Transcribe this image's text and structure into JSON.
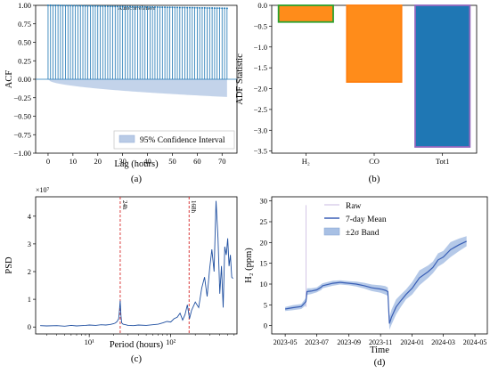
{
  "chart_data": [
    {
      "panel": "a",
      "type": "bar",
      "subtype": "autocorrelation-stem",
      "title": "Autocorrelation",
      "xlabel": "Lag (hours)",
      "ylabel": "ACF",
      "caption": "(a)",
      "xlim": [
        -5,
        76
      ],
      "ylim": [
        -1.0,
        1.0
      ],
      "x_ticks": [
        "0",
        "10",
        "20",
        "30",
        "40",
        "50",
        "60",
        "70"
      ],
      "y_ticks": [
        "−1.00",
        "−0.75",
        "−0.50",
        "−0.25",
        "0.00",
        "0.25",
        "0.50",
        "0.75",
        "1.00"
      ],
      "lag_start": 0,
      "lag_end": 72,
      "acf_at_lag0": 1.0,
      "acf_at_lag72": 0.96,
      "confidence_upper_at_lag72": 0.0,
      "confidence_lower_at_lag72": -0.24,
      "legend": [
        {
          "label": "95% Confidence Interval"
        }
      ],
      "legend_position": "bottom-right",
      "colors": {
        "stem": "#1f77b4",
        "band": "#b9cbe6"
      }
    },
    {
      "panel": "b",
      "type": "bar",
      "ylabel": "ADF Statistic",
      "caption": "(b)",
      "categories": [
        "H₂",
        "CO",
        "Tot1"
      ],
      "values": [
        -0.4,
        -1.84,
        -3.4
      ],
      "ylim": [
        -3.55,
        0.0
      ],
      "y_ticks": [
        "0.0",
        "−0.5",
        "−1.0",
        "−1.5",
        "−2.0",
        "−2.5",
        "−3.0",
        "−3.5"
      ],
      "colors": [
        "#ff8c1a",
        "#ff8c1a",
        "#1f77b4"
      ],
      "bar_edge_colors": [
        "#2ca02c",
        "#ff7f0e",
        "#9467bd"
      ]
    },
    {
      "panel": "c",
      "type": "line",
      "subtype": "periodogram",
      "xlabel": "Period (hours)",
      "ylabel": "PSD",
      "caption": "(c)",
      "x_scale": "log",
      "y_multiplier": "×10⁷",
      "x_ticks": [
        "10¹",
        "10²"
      ],
      "y_ticks": [
        "0",
        "1",
        "2",
        "3",
        "4"
      ],
      "xlim": [
        2.2,
        650
      ],
      "ylim": [
        -0.25,
        4.7
      ],
      "reference_lines": [
        {
          "period": 24,
          "label": "24h",
          "color": "#d62728"
        },
        {
          "period": 168,
          "label": "168h",
          "color": "#d62728"
        }
      ],
      "series": [
        {
          "x": [
            2.5,
            3,
            4,
            5,
            6,
            7,
            8,
            9,
            10,
            12,
            14,
            16,
            18,
            20,
            21,
            22,
            23,
            23.5,
            24,
            24.5,
            25,
            26,
            28,
            30,
            35,
            40,
            50,
            60,
            70,
            80,
            90,
            100,
            110,
            120,
            130,
            140,
            150,
            160,
            170,
            180,
            200,
            220,
            240,
            260,
            280,
            300,
            320,
            340,
            350,
            360,
            380,
            400,
            420,
            440,
            460,
            480,
            500,
            520,
            540,
            560,
            580
          ],
          "y": [
            0.05,
            0.04,
            0.05,
            0.03,
            0.06,
            0.04,
            0.05,
            0.06,
            0.07,
            0.06,
            0.08,
            0.07,
            0.09,
            0.12,
            0.15,
            0.2,
            0.3,
            0.6,
            0.95,
            0.4,
            0.15,
            0.1,
            0.08,
            0.06,
            0.05,
            0.07,
            0.06,
            0.08,
            0.1,
            0.15,
            0.2,
            0.18,
            0.3,
            0.35,
            0.5,
            0.25,
            0.45,
            0.8,
            0.3,
            0.6,
            0.9,
            0.7,
            1.4,
            1.8,
            1.1,
            2.1,
            2.8,
            2.0,
            3.3,
            4.55,
            3.2,
            1.2,
            2.2,
            0.7,
            2.9,
            2.6,
            3.2,
            2.2,
            2.6,
            1.8,
            1.75
          ]
        }
      ],
      "line_color": "#1f4fa0"
    },
    {
      "panel": "d",
      "type": "line",
      "xlabel": "Time",
      "ylabel": "H₂ (ppm)",
      "caption": "(d)",
      "ylim": [
        -2,
        31
      ],
      "y_ticks": [
        "0",
        "5",
        "10",
        "15",
        "20",
        "25",
        "30"
      ],
      "x_ticks": [
        "2023-05",
        "2023-07",
        "2023-09",
        "2023-11",
        "2024-01",
        "2024-03",
        "2024-05"
      ],
      "legend": [
        {
          "label": "Raw"
        },
        {
          "label": "7-day Mean"
        },
        {
          "label": "±2σ Band"
        }
      ],
      "legend_position": "upper-left",
      "series": [
        {
          "name": "7-day Mean",
          "x": [
            "2023-05-01",
            "2023-05-15",
            "2023-06-01",
            "2023-06-10",
            "2023-06-12",
            "2023-06-20",
            "2023-07-01",
            "2023-07-10",
            "2023-07-12",
            "2023-08-01",
            "2023-08-15",
            "2023-09-01",
            "2023-09-15",
            "2023-10-01",
            "2023-10-15",
            "2023-11-01",
            "2023-11-10",
            "2023-11-15",
            "2023-11-18",
            "2023-11-22",
            "2023-12-01",
            "2023-12-10",
            "2023-12-20",
            "2024-01-01",
            "2024-01-15",
            "2024-02-01",
            "2024-02-10",
            "2024-02-20",
            "2024-03-01",
            "2024-03-15",
            "2024-04-01",
            "2024-04-15"
          ],
          "y": [
            4.0,
            4.3,
            4.6,
            5.8,
            8.2,
            8.3,
            8.6,
            9.3,
            9.6,
            10.2,
            10.4,
            10.2,
            10.0,
            9.6,
            9.1,
            8.8,
            8.5,
            8.2,
            0.5,
            2.0,
            4.5,
            6.0,
            7.5,
            9.0,
            11.5,
            13.0,
            14.0,
            15.8,
            16.5,
            18.3,
            19.5,
            20.3
          ]
        }
      ],
      "band_half_width": [
        0.5,
        0.6,
        0.6,
        0.9,
        0.8,
        0.7,
        0.6,
        0.7,
        0.6,
        0.6,
        0.5,
        0.5,
        0.6,
        0.7,
        0.8,
        0.9,
        1.0,
        1.0,
        1.5,
        1.8,
        1.8,
        1.5,
        1.2,
        1.5,
        1.8,
        1.5,
        1.4,
        1.6,
        1.5,
        1.8,
        1.5,
        1.2
      ],
      "raw_spike": {
        "x": "2023-06-10",
        "y": 29.0
      },
      "colors": {
        "mean": "#3a5fb5",
        "band": "#a8c0e4",
        "raw": "#c9b8e0"
      }
    }
  ]
}
